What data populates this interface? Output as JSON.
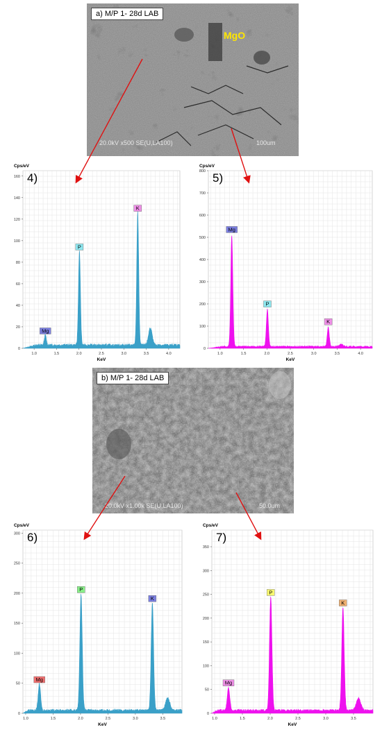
{
  "sem_a": {
    "label": "a) M/P 1- 28d LAB",
    "info": "20.0kV x500 SE(U,LA100)",
    "scale": "100um",
    "annotation": "MgO"
  },
  "sem_b": {
    "label": "b) M/P 1- 28d LAB",
    "info": "20.0kV x1.00k SE(U,LA100)",
    "scale": "50.0um"
  },
  "chart_data": [
    {
      "type": "line",
      "panel": "4)",
      "ylabel": "Cps/eV",
      "xlabel": "KeV",
      "xlim": [
        0.75,
        4.25
      ],
      "ylim": [
        0,
        165
      ],
      "xticks": [
        "1.0",
        "1.5",
        "2.0",
        "2.5",
        "3.0",
        "3.5",
        "4.0"
      ],
      "yticks": [
        "0",
        "20",
        "40",
        "60",
        "80",
        "100",
        "120",
        "140",
        "160"
      ],
      "color": "#3aa0c8",
      "peaks": [
        {
          "element": "Mg",
          "x": 1.25,
          "y": 10,
          "tag_color": "#7b7fe0"
        },
        {
          "element": "P",
          "x": 2.01,
          "y": 88,
          "tag_color": "#8ee8f0"
        },
        {
          "element": "K",
          "x": 3.31,
          "y": 124,
          "tag_color": "#f090e8"
        },
        {
          "element": "",
          "x": 3.59,
          "y": 17
        }
      ],
      "baseline": 3
    },
    {
      "type": "line",
      "panel": "5)",
      "ylabel": "Cps/eV",
      "xlabel": "KeV",
      "xlim": [
        0.75,
        4.25
      ],
      "ylim": [
        0,
        800
      ],
      "xticks": [
        "1.0",
        "1.5",
        "2.0",
        "2.5",
        "3.0",
        "3.5",
        "4.0"
      ],
      "yticks": [
        "0",
        "100",
        "200",
        "300",
        "400",
        "500",
        "600",
        "700",
        "800"
      ],
      "color": "#ee11ee",
      "peaks": [
        {
          "element": "Mg",
          "x": 1.25,
          "y": 505,
          "tag_color": "#7b7fe0"
        },
        {
          "element": "P",
          "x": 2.01,
          "y": 170,
          "tag_color": "#8ee8f0"
        },
        {
          "element": "K",
          "x": 3.31,
          "y": 90,
          "tag_color": "#f090e8"
        },
        {
          "element": "",
          "x": 3.59,
          "y": 12
        }
      ],
      "baseline": 8
    },
    {
      "type": "line",
      "panel": "6)",
      "ylabel": "Cps/eV",
      "xlabel": "KeV",
      "xlim": [
        0.95,
        3.85
      ],
      "ylim": [
        0,
        305
      ],
      "xticks": [
        "1.0",
        "1.5",
        "2.0",
        "2.5",
        "3.0",
        "3.5"
      ],
      "yticks": [
        "0",
        "50",
        "100",
        "150",
        "200",
        "250",
        "300"
      ],
      "color": "#3aa0c8",
      "peaks": [
        {
          "element": "Mg",
          "x": 1.25,
          "y": 45,
          "tag_color": "#f07070"
        },
        {
          "element": "P",
          "x": 2.01,
          "y": 195,
          "tag_color": "#88ee88"
        },
        {
          "element": "K",
          "x": 3.31,
          "y": 180,
          "tag_color": "#7b7fe0"
        },
        {
          "element": "",
          "x": 3.59,
          "y": 22
        }
      ],
      "baseline": 5
    },
    {
      "type": "line",
      "panel": "7)",
      "ylabel": "Cps/eV",
      "xlabel": "KeV",
      "xlim": [
        0.95,
        3.85
      ],
      "ylim": [
        0,
        385
      ],
      "xticks": [
        "1.0",
        "1.5",
        "2.0",
        "2.5",
        "3.0",
        "3.5"
      ],
      "yticks": [
        "0",
        "50",
        "100",
        "150",
        "200",
        "250",
        "300",
        "350"
      ],
      "color": "#ee11ee",
      "peaks": [
        {
          "element": "Mg",
          "x": 1.25,
          "y": 50,
          "tag_color": "#f090e8"
        },
        {
          "element": "P",
          "x": 2.01,
          "y": 240,
          "tag_color": "#f8f870"
        },
        {
          "element": "K",
          "x": 3.31,
          "y": 218,
          "tag_color": "#f0b070"
        },
        {
          "element": "",
          "x": 3.59,
          "y": 28
        }
      ],
      "baseline": 6
    }
  ]
}
